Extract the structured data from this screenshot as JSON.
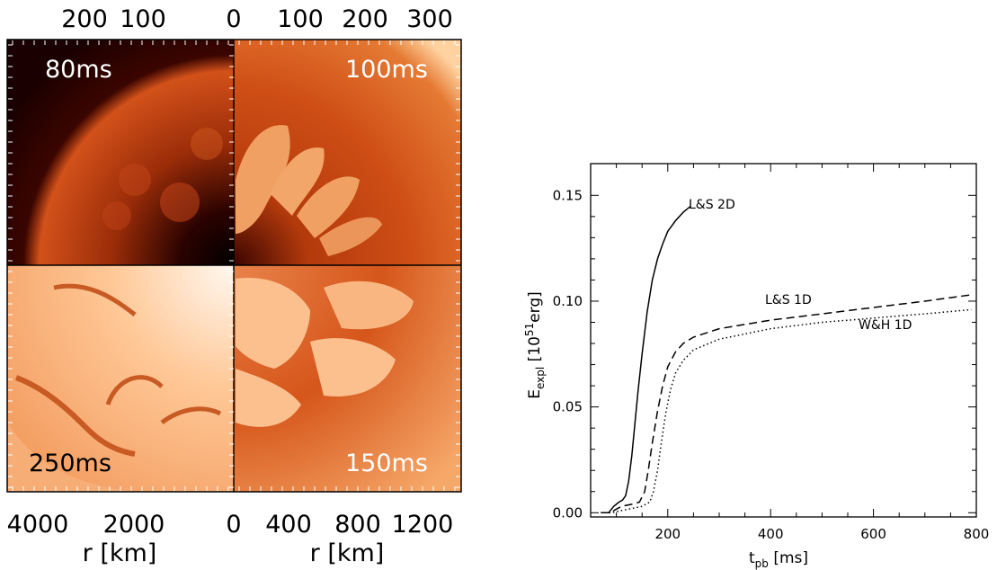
{
  "simulation_figure": {
    "top_axis_ticks": [
      "200",
      "100",
      "0",
      "100",
      "200",
      "300"
    ],
    "bottom_axis_ticks": [
      "4000",
      "2000",
      "0",
      "400",
      "800",
      "1200"
    ],
    "left_axis_label": "r [km]",
    "right_axis_label": "r [km]",
    "panels": [
      {
        "label": "80ms",
        "corner": "top-left"
      },
      {
        "label": "100ms",
        "corner": "top-right"
      },
      {
        "label": "250ms",
        "corner": "bottom-left"
      },
      {
        "label": "150ms",
        "corner": "bottom-right"
      }
    ],
    "colors": {
      "dark": "#1a0000",
      "red": "#c23b0d",
      "orange": "#e06a1e",
      "light": "#ffd7a8",
      "white": "#fff6ec"
    }
  },
  "chart_data": {
    "type": "line",
    "xlabel": "t",
    "xlabel_sub": "pb",
    "xlabel_unit": "[ms]",
    "ylabel": "E",
    "ylabel_sub": "expl",
    "ylabel_unit_pre": "[10",
    "ylabel_unit_sup": "51",
    "ylabel_unit_post": "erg]",
    "xlim": [
      50,
      800
    ],
    "ylim": [
      -0.002,
      0.165
    ],
    "xticks": [
      200,
      400,
      600,
      800
    ],
    "xtick_labels": [
      "200",
      "400",
      "600",
      "800"
    ],
    "yticks": [
      0.0,
      0.05,
      0.1,
      0.15
    ],
    "ytick_labels": [
      "0.00",
      "0.05",
      "0.10",
      "0.15"
    ],
    "series": [
      {
        "name": "L&S 2D",
        "style": "solid",
        "x": [
          70,
          85,
          95,
          105,
          112,
          118,
          124,
          130,
          136,
          142,
          150,
          160,
          170,
          180,
          190,
          200,
          215,
          230,
          245
        ],
        "y": [
          0.0,
          0.0,
          0.003,
          0.005,
          0.006,
          0.008,
          0.015,
          0.027,
          0.042,
          0.057,
          0.075,
          0.095,
          0.11,
          0.12,
          0.127,
          0.133,
          0.138,
          0.142,
          0.145
        ]
      },
      {
        "name": "L&S 1D",
        "style": "dashed",
        "x": [
          70,
          85,
          95,
          110,
          130,
          145,
          155,
          162,
          170,
          180,
          190,
          200,
          215,
          230,
          250,
          300,
          400,
          500,
          600,
          700,
          790
        ],
        "y": [
          0.0,
          0.0,
          0.001,
          0.003,
          0.004,
          0.005,
          0.01,
          0.02,
          0.033,
          0.048,
          0.06,
          0.069,
          0.076,
          0.08,
          0.083,
          0.087,
          0.091,
          0.094,
          0.097,
          0.1,
          0.103
        ]
      },
      {
        "name": "W&H 1D",
        "style": "dotted",
        "x": [
          70,
          90,
          110,
          130,
          150,
          165,
          172,
          180,
          188,
          196,
          205,
          215,
          230,
          250,
          300,
          400,
          500,
          600,
          700,
          790
        ],
        "y": [
          0.0,
          0.0,
          0.001,
          0.002,
          0.003,
          0.005,
          0.01,
          0.02,
          0.034,
          0.047,
          0.058,
          0.066,
          0.072,
          0.077,
          0.082,
          0.087,
          0.09,
          0.092,
          0.094,
          0.096
        ]
      }
    ]
  }
}
